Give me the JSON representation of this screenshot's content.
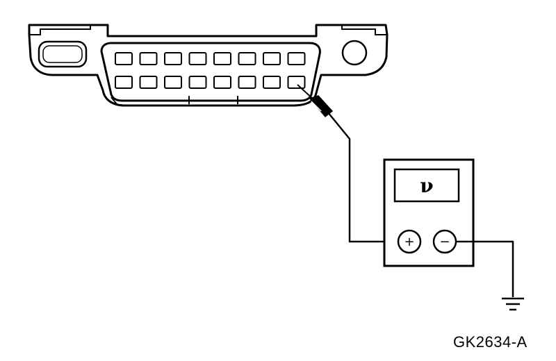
{
  "meter": {
    "display_symbol": "ν",
    "positive_terminal": "+",
    "negative_terminal": "−"
  },
  "connector": {
    "pins_top_row": 8,
    "pins_bottom_row": 8
  },
  "figure_id": "GK2634-A",
  "colors": {
    "stroke": "#000000",
    "background": "#ffffff"
  }
}
